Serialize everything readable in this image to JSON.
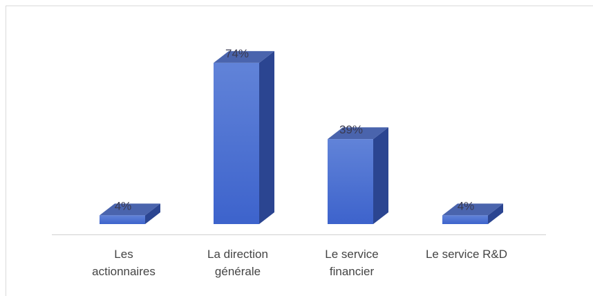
{
  "chart_data": {
    "type": "bar3d",
    "categories": [
      "Les actionnaires",
      "La direction générale",
      "Le service financier",
      "Le service R&D"
    ],
    "values": [
      4,
      74,
      39,
      4
    ],
    "value_labels": [
      "4%",
      "74%",
      "39%",
      "4%"
    ],
    "color": "#4a72d4"
  }
}
